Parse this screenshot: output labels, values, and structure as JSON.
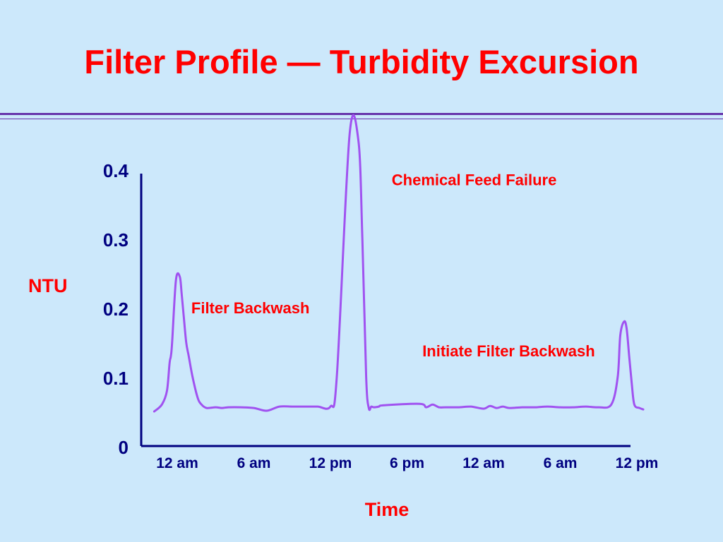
{
  "slide": {
    "title": "Filter Profile — Turbidity Excursion"
  },
  "colors": {
    "background": "#cce8fb",
    "title": "#ff0000",
    "rule": "#6633aa",
    "axis": "#000080",
    "series_line": "#a052f0",
    "annotation": "#ff0000"
  },
  "chart_data": {
    "type": "line",
    "title": "",
    "xlabel": "Time",
    "ylabel": "NTU",
    "ylim": [
      0,
      0.4
    ],
    "yticks": [
      "0",
      "0.1",
      "0.2",
      "0.3",
      "0.4"
    ],
    "xticks": [
      "12 am",
      "6 am",
      "12 pm",
      "6 pm",
      "12 am",
      "6 am",
      "12 pm"
    ],
    "xlim_hours": [
      -2,
      36.6
    ],
    "grid": false,
    "series": [
      {
        "name": "",
        "x_hours": [
          -1.8,
          -1.2,
          -0.8,
          -0.6,
          -0.5,
          -0.4,
          -0.1,
          0.2,
          0.35,
          0.5,
          0.7,
          0.9,
          1.2,
          1.6,
          1.9,
          2.3,
          3.0,
          3.5,
          4.0,
          5.0,
          6.0,
          7.0,
          8.0,
          9.0,
          10.0,
          11.0,
          12.0,
          12.5,
          13.5,
          14.2,
          14.5,
          14.8,
          15.0,
          15.2,
          15.4,
          15.8,
          16.2,
          19.0,
          19.5,
          20.0,
          20.5,
          21.0,
          22.0,
          23.0,
          24.0,
          24.5,
          25.0,
          25.5,
          26.0,
          27.0,
          28.0,
          29.0,
          30.0,
          31.0,
          32.0,
          33.0,
          34.0,
          34.5,
          34.7,
          35.0,
          35.2,
          35.4,
          35.6,
          35.8,
          36.2,
          36.5
        ],
        "values": [
          0.05,
          0.06,
          0.08,
          0.12,
          0.13,
          0.15,
          0.24,
          0.245,
          0.22,
          0.19,
          0.15,
          0.13,
          0.1,
          0.07,
          0.06,
          0.055,
          0.056,
          0.055,
          0.056,
          0.056,
          0.055,
          0.051,
          0.057,
          0.057,
          0.057,
          0.057,
          0.057,
          0.1,
          0.45,
          0.44,
          0.3,
          0.1,
          0.055,
          0.057,
          0.056,
          0.057,
          0.059,
          0.061,
          0.056,
          0.06,
          0.056,
          0.056,
          0.056,
          0.057,
          0.054,
          0.058,
          0.055,
          0.057,
          0.055,
          0.056,
          0.056,
          0.057,
          0.056,
          0.056,
          0.057,
          0.056,
          0.06,
          0.1,
          0.16,
          0.18,
          0.17,
          0.13,
          0.09,
          0.06,
          0.055,
          0.053
        ]
      }
    ],
    "annotations": [
      {
        "text": "Filter Backwash",
        "x_hours": 1.1,
        "y": 0.2
      },
      {
        "text": "Chemical Feed Failure",
        "x_hours": 16.8,
        "y": 0.385
      },
      {
        "text": "Initiate Filter Backwash",
        "x_hours": 19.2,
        "y": 0.138
      }
    ]
  }
}
